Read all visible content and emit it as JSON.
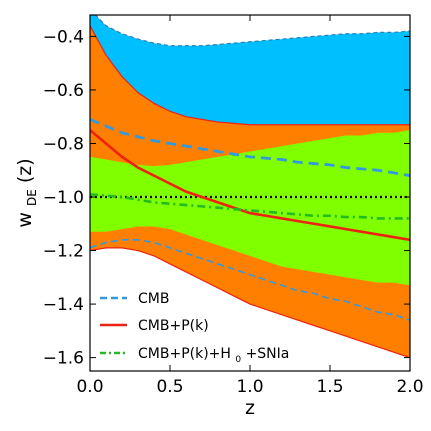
{
  "chart_data": {
    "type": "area",
    "xlabel": "z",
    "ylabel": "w",
    "ylabel_subscript": "DE",
    "ylabel_suffix": "(z)",
    "xlim": [
      0.0,
      2.0
    ],
    "ylim": [
      -1.65,
      -0.32
    ],
    "xticks": [
      0.0,
      0.5,
      1.0,
      1.5,
      2.0
    ],
    "xtick_labels": [
      "0.0",
      "0.5",
      "1.0",
      "1.5",
      "2.0"
    ],
    "yticks": [
      -1.6,
      -1.4,
      -1.2,
      -1.0,
      -0.8,
      -0.6,
      -0.4
    ],
    "ytick_labels": [
      "−1.6",
      "−1.4",
      "−1.2",
      "−1.0",
      "−0.8",
      "−0.6",
      "−0.4"
    ],
    "grid": false,
    "legend_position": "lower-left",
    "colors": {
      "cmb_band": "#00bfff",
      "cmb_pk_band": "#ff8000",
      "cmb_pk_h0_snia_band": "#80ff00",
      "cmb_line": "#3399dd",
      "cmb_pk_line": "#ee2211",
      "cmb_pk_h0_snia_line": "#22bb22",
      "reference_line": "#000000"
    },
    "x": [
      0.0,
      0.1,
      0.2,
      0.3,
      0.4,
      0.5,
      0.6,
      0.7,
      0.8,
      0.9,
      1.0,
      1.1,
      1.2,
      1.3,
      1.4,
      1.5,
      1.6,
      1.7,
      1.8,
      1.9,
      2.0
    ],
    "bands": [
      {
        "name": "CMB",
        "upper": [
          -0.3,
          -0.36,
          -0.39,
          -0.41,
          -0.425,
          -0.435,
          -0.435,
          -0.435,
          -0.43,
          -0.425,
          -0.42,
          -0.415,
          -0.41,
          -0.405,
          -0.4,
          -0.395,
          -0.39,
          -0.39,
          -0.385,
          -0.385,
          -0.38
        ],
        "lower": [
          -0.3,
          -0.36,
          -0.39,
          -0.41,
          -0.425,
          -0.435,
          -0.435,
          -0.435,
          -0.43,
          -0.425,
          -0.42,
          -0.415,
          -0.41,
          -0.405,
          -0.4,
          -0.395,
          -0.39,
          -0.39,
          -0.385,
          -0.385,
          -0.38
        ]
      },
      {
        "name": "CMB+P(k)",
        "upper": [
          -0.36,
          -0.47,
          -0.55,
          -0.61,
          -0.65,
          -0.68,
          -0.7,
          -0.71,
          -0.72,
          -0.725,
          -0.73,
          -0.73,
          -0.73,
          -0.73,
          -0.73,
          -0.73,
          -0.73,
          -0.73,
          -0.73,
          -0.73,
          -0.73
        ],
        "lower": [
          -1.2,
          -1.19,
          -1.19,
          -1.2,
          -1.22,
          -1.25,
          -1.28,
          -1.31,
          -1.34,
          -1.37,
          -1.4,
          -1.42,
          -1.44,
          -1.46,
          -1.48,
          -1.5,
          -1.52,
          -1.54,
          -1.56,
          -1.58,
          -1.6
        ]
      },
      {
        "name": "CMB+P(k)+H0+SNIa",
        "upper": [
          -0.85,
          -0.86,
          -0.87,
          -0.88,
          -0.885,
          -0.88,
          -0.87,
          -0.86,
          -0.85,
          -0.84,
          -0.83,
          -0.82,
          -0.81,
          -0.8,
          -0.79,
          -0.78,
          -0.77,
          -0.77,
          -0.76,
          -0.76,
          -0.75
        ],
        "lower": [
          -1.13,
          -1.13,
          -1.12,
          -1.11,
          -1.11,
          -1.12,
          -1.14,
          -1.16,
          -1.18,
          -1.2,
          -1.22,
          -1.24,
          -1.26,
          -1.27,
          -1.28,
          -1.29,
          -1.3,
          -1.31,
          -1.32,
          -1.32,
          -1.33
        ]
      }
    ],
    "series": [
      {
        "name": "CMB",
        "style": "dashed",
        "values": [
          -0.71,
          -0.735,
          -0.76,
          -0.775,
          -0.79,
          -0.8,
          -0.81,
          -0.82,
          -0.83,
          -0.84,
          -0.85,
          -0.855,
          -0.86,
          -0.87,
          -0.875,
          -0.88,
          -0.89,
          -0.895,
          -0.9,
          -0.91,
          -0.92
        ]
      },
      {
        "name": "CMB+P(k)",
        "style": "solid",
        "values": [
          -0.75,
          -0.8,
          -0.85,
          -0.89,
          -0.92,
          -0.95,
          -0.98,
          -1.0,
          -1.02,
          -1.04,
          -1.06,
          -1.07,
          -1.08,
          -1.09,
          -1.1,
          -1.11,
          -1.12,
          -1.13,
          -1.14,
          -1.15,
          -1.16
        ]
      },
      {
        "name": "CMB+P(k)+H0+SNIa",
        "style": "dashdot",
        "values": [
          -0.99,
          -0.995,
          -1.0,
          -1.01,
          -1.02,
          -1.025,
          -1.03,
          -1.035,
          -1.04,
          -1.045,
          -1.05,
          -1.055,
          -1.06,
          -1.065,
          -1.07,
          -1.07,
          -1.075,
          -1.075,
          -1.08,
          -1.08,
          -1.08
        ]
      }
    ],
    "reference_lines": [
      {
        "y": -1.0,
        "style": "dotted"
      }
    ],
    "cmb_lower_dashed": [
      -1.19,
      -1.17,
      -1.16,
      -1.16,
      -1.17,
      -1.19,
      -1.21,
      -1.23,
      -1.25,
      -1.27,
      -1.29,
      -1.31,
      -1.33,
      -1.35,
      -1.36,
      -1.38,
      -1.39,
      -1.41,
      -1.43,
      -1.44,
      -1.46
    ],
    "legend": [
      {
        "label": "CMB",
        "style": "dashed",
        "color": "#3399dd"
      },
      {
        "label": "CMB+P(k)",
        "style": "solid",
        "color": "#ee2211"
      },
      {
        "label_main": "CMB+P(k)+H",
        "label_sub": "0",
        "label_tail": "+SNIa",
        "style": "dashdot",
        "color": "#22bb22"
      }
    ]
  }
}
